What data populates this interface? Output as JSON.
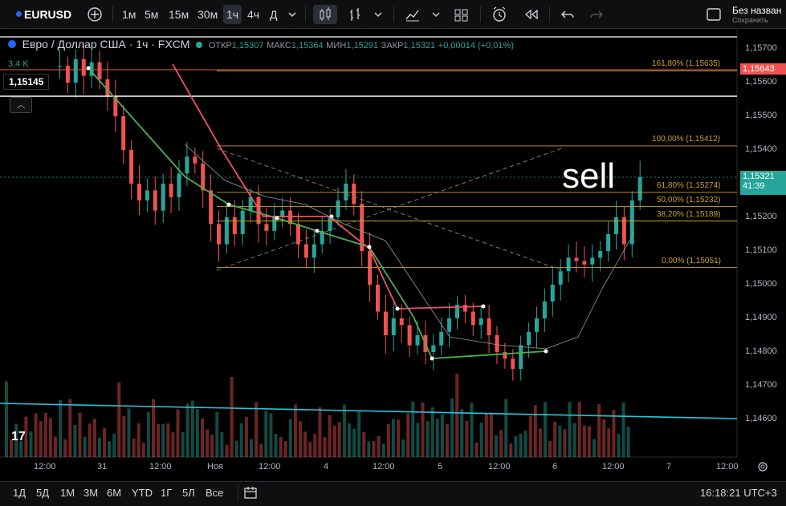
{
  "topbar": {
    "symbol": "EURUSD",
    "add_icon": "plus-circle-icon",
    "timeframes": [
      "1м",
      "5м",
      "15м",
      "30м",
      "1ч",
      "4ч",
      "Д"
    ],
    "active_timeframe": "1ч",
    "layout_name": "Без назван",
    "save_label": "Сохранить"
  },
  "legend": {
    "title": "Евро / Доллар США · 1ч · FXCM",
    "open_label": "ОТКР",
    "open": "1,15307",
    "high_label": "МАКС",
    "high": "1,15364",
    "low_label": "МИН",
    "low": "1,15291",
    "close_label": "ЗАКР",
    "close": "1,15321",
    "change": "+0,00014 (+0,01%)",
    "volume": "3,4 K",
    "cursor_price": "1,15145"
  },
  "price_axis": {
    "ticks": [
      "1,15700",
      "1,15600",
      "1,15500",
      "1,15400",
      "1,15300",
      "1,15200",
      "1,15100",
      "1,15000",
      "1,14900",
      "1,14800",
      "1,14700",
      "1,14600"
    ],
    "red_tag": "1,15643",
    "current_price": "1,15321",
    "countdown": "41:39"
  },
  "fib": [
    {
      "label": "161,80% (1,15635)",
      "value": 1.15635
    },
    {
      "label": "100,00% (1,15412)",
      "value": 1.15412
    },
    {
      "label": "61,80% (1,15274)",
      "value": 1.15274
    },
    {
      "label": "50,00% (1,15232)",
      "value": 1.15232
    },
    {
      "label": "38,20% (1,15189)",
      "value": 1.15189
    },
    {
      "label": "0,00% (1,15051)",
      "value": 1.15051
    }
  ],
  "time_axis": [
    "12:00",
    "31",
    "12:00",
    "Ноя",
    "12:00",
    "4",
    "12:00",
    "5",
    "12:00",
    "6",
    "12:00",
    "7",
    "12:00"
  ],
  "annotation": "sell",
  "bottombar": {
    "ranges": [
      "1Д",
      "5Д",
      "1М",
      "3М",
      "6М",
      "YTD",
      "1Г",
      "5Л",
      "Все"
    ],
    "calendar_icon": "calendar-range-icon",
    "clock": "16:18:21 UTC+3"
  },
  "colors": {
    "up": "#26a69a",
    "down": "#ef5350",
    "fib": "#c9a227",
    "trend": "#26c6da"
  }
}
